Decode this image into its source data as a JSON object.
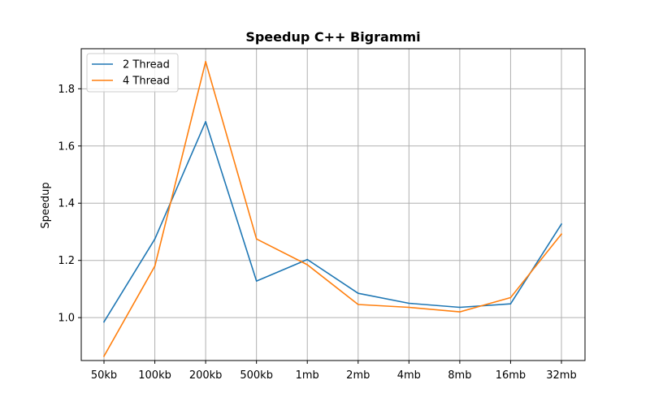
{
  "chart_data": {
    "type": "line",
    "title": "Speedup C++ Bigrammi",
    "xlabel": "",
    "ylabel": "Speedup",
    "categories": [
      "50kb",
      "100kb",
      "200kb",
      "500kb",
      "1mb",
      "2mb",
      "4mb",
      "8mb",
      "16mb",
      "32mb"
    ],
    "ylim": [
      0.85,
      1.94
    ],
    "yticks": [
      1.0,
      1.2,
      1.4,
      1.6,
      1.8
    ],
    "ytick_labels": [
      "1.0",
      "1.2",
      "1.4",
      "1.6",
      "1.8"
    ],
    "grid": true,
    "legend_position": "top-left",
    "series": [
      {
        "name": "2 Thread",
        "color": "#1f77b4",
        "values": [
          0.985,
          1.275,
          1.685,
          1.128,
          1.203,
          1.085,
          1.05,
          1.036,
          1.048,
          1.327
        ]
      },
      {
        "name": "4 Thread",
        "color": "#ff7f0e",
        "values": [
          0.865,
          1.18,
          1.895,
          1.275,
          1.185,
          1.046,
          1.036,
          1.02,
          1.07,
          1.292
        ]
      }
    ]
  }
}
